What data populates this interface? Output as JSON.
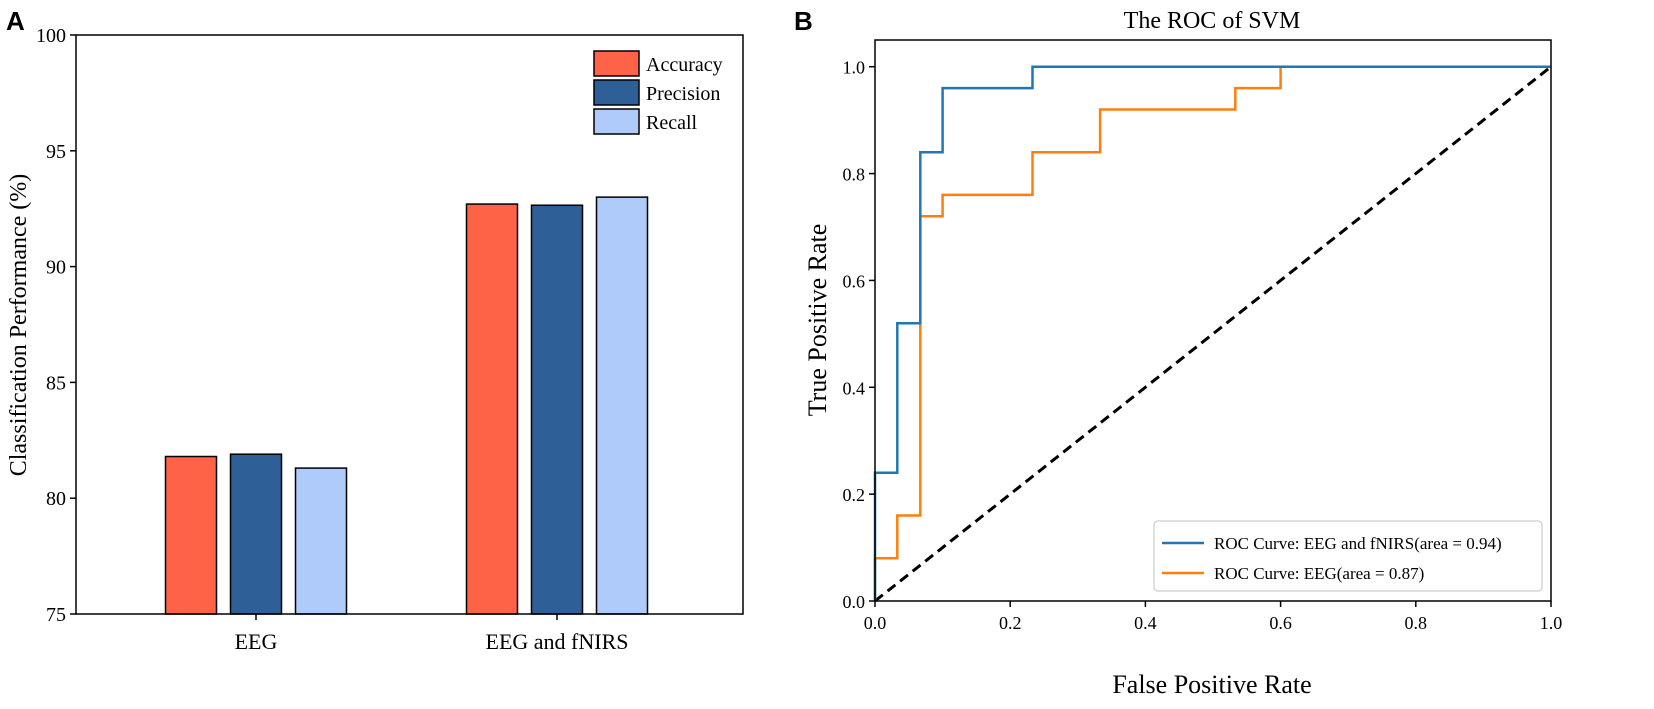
{
  "chart_data": [
    {
      "type": "bar",
      "panel_label": "A",
      "title": "",
      "xlabel": "",
      "ylabel": "Classification Performance (%)",
      "ylim": [
        75,
        100
      ],
      "yticks": [
        "75",
        "80",
        "85",
        "90",
        "95",
        "100"
      ],
      "categories": [
        "EEG",
        "EEG and fNIRS"
      ],
      "legend_position": "top-right",
      "series": [
        {
          "name": "Accuracy",
          "color": "#fe6347",
          "values": [
            81.8,
            92.7
          ]
        },
        {
          "name": "Precision",
          "color": "#2f5f97",
          "values": [
            81.9,
            92.65
          ]
        },
        {
          "name": "Recall",
          "color": "#aecbf9",
          "values": [
            81.3,
            93.0
          ]
        }
      ]
    },
    {
      "type": "line",
      "panel_label": "B",
      "title": "The ROC of SVM",
      "xlabel": "False Positive Rate",
      "ylabel": "True Positive Rate",
      "xlim": [
        0,
        1
      ],
      "ylim": [
        0,
        1.05
      ],
      "xticks": [
        "0.0",
        "0.2",
        "0.4",
        "0.6",
        "0.8",
        "1.0"
      ],
      "yticks": [
        "0.0",
        "0.2",
        "0.4",
        "0.6",
        "0.8",
        "1.0"
      ],
      "legend_position": "bottom-right",
      "series": [
        {
          "name": "ROC Curve: EEG and fNIRS(area = 0.94)",
          "color": "#1f77b4",
          "x": [
            0,
            0,
            0.033,
            0.033,
            0.067,
            0.067,
            0.1,
            0.1,
            0.233,
            0.233,
            1.0
          ],
          "y": [
            0,
            0.24,
            0.24,
            0.52,
            0.52,
            0.84,
            0.84,
            0.96,
            0.96,
            1.0,
            1.0
          ]
        },
        {
          "name": "ROC Curve: EEG(area = 0.87)",
          "color": "#ff7f0e",
          "x": [
            0,
            0,
            0.033,
            0.033,
            0.067,
            0.067,
            0.1,
            0.1,
            0.233,
            0.233,
            0.333,
            0.333,
            0.533,
            0.533,
            0.6,
            0.6,
            1.0
          ],
          "y": [
            0,
            0.08,
            0.08,
            0.16,
            0.16,
            0.72,
            0.72,
            0.76,
            0.76,
            0.84,
            0.84,
            0.92,
            0.92,
            0.96,
            0.96,
            1.0,
            1.0
          ]
        },
        {
          "name": "chance",
          "color": "#000000",
          "dashed": true,
          "x": [
            0,
            1
          ],
          "y": [
            0,
            1
          ]
        }
      ]
    }
  ]
}
